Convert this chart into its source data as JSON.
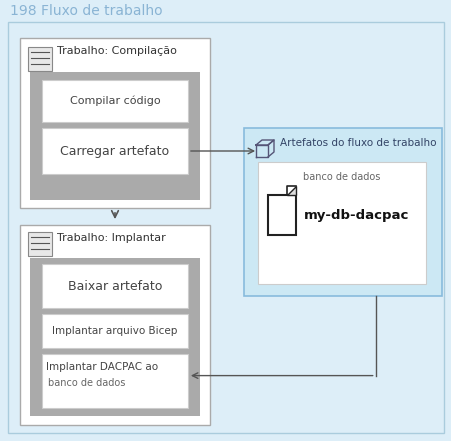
{
  "title": "198 Fluxo de trabalho",
  "title_color": "#8ab4d4",
  "title_fontsize": 10,
  "bg_outer_color": "#ddeef8",
  "bg_outer_border": "#aaccdd",
  "job1_title": "Trabalho: Compilação",
  "step1a_text": "Compilar código",
  "step1b_text": "Carregar artefato",
  "job2_title": "Trabalho: Implantar",
  "step2a_text": "Baixar artefato",
  "step2b_text": "Implantar arquivo Bicep",
  "step2c_line1": "Implantar DACPAC ao",
  "step2c_line2": "banco de dados",
  "artifact_title": "Artefatos do fluxo de trabalho",
  "artifact_bg": "#cce8f4",
  "artifact_border": "#88bbdd",
  "artifact_label": "banco de dados",
  "artifact_name": "my-db-dacpac",
  "arrow_color": "#555555",
  "white": "#ffffff",
  "gray_inner": "#aaaaaa",
  "step_border": "#cccccc",
  "job_border": "#aaaaaa",
  "icon_bg": "#e8e8e8",
  "icon_border": "#888888",
  "text_dark": "#444444"
}
